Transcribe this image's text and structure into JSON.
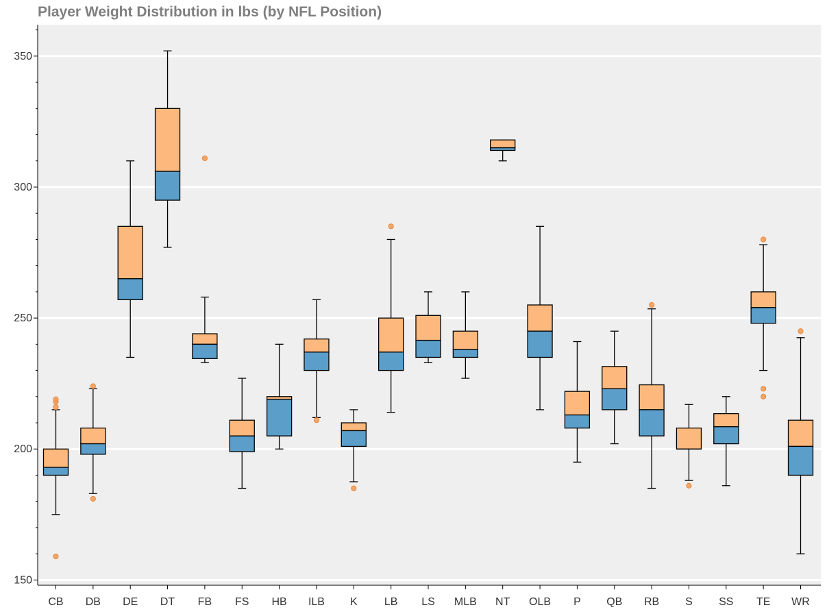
{
  "chart_data": {
    "type": "box",
    "title": "Player Weight Distribution in lbs (by NFL Position)",
    "xlabel": "",
    "ylabel": "",
    "ylim": [
      148,
      362
    ],
    "yticks": [
      150,
      200,
      250,
      300,
      350
    ],
    "grid": {
      "horizontal": true,
      "vertical": false
    },
    "colors": {
      "upper_box": "#fdb97d",
      "lower_box": "#5b9ec9",
      "outlier": "#f29a52",
      "background": "#efefef",
      "grid": "#ffffff",
      "whisker": "#000000"
    },
    "categories": [
      "CB",
      "DB",
      "DE",
      "DT",
      "FB",
      "FS",
      "HB",
      "ILB",
      "K",
      "LB",
      "LS",
      "MLB",
      "NT",
      "OLB",
      "P",
      "QB",
      "RB",
      "S",
      "SS",
      "TE",
      "WR"
    ],
    "boxes": [
      {
        "label": "CB",
        "lower_whisker": 175,
        "q1": 190,
        "median": 193,
        "q3": 200,
        "upper_whisker": 215,
        "outliers": [
          159,
          216,
          218,
          219
        ]
      },
      {
        "label": "DB",
        "lower_whisker": 183,
        "q1": 198,
        "median": 202,
        "q3": 208,
        "upper_whisker": 223,
        "outliers": [
          181,
          224
        ]
      },
      {
        "label": "DE",
        "lower_whisker": 235,
        "q1": 257,
        "median": 265,
        "q3": 285,
        "upper_whisker": 310,
        "outliers": []
      },
      {
        "label": "DT",
        "lower_whisker": 277,
        "q1": 295,
        "median": 306,
        "q3": 330,
        "upper_whisker": 352,
        "outliers": []
      },
      {
        "label": "FB",
        "lower_whisker": 233,
        "q1": 234.5,
        "median": 240,
        "q3": 244,
        "upper_whisker": 258,
        "outliers": [
          311
        ]
      },
      {
        "label": "FS",
        "lower_whisker": 185,
        "q1": 199,
        "median": 205,
        "q3": 211,
        "upper_whisker": 227,
        "outliers": []
      },
      {
        "label": "HB",
        "lower_whisker": 200,
        "q1": 205,
        "median": 219,
        "q3": 220,
        "upper_whisker": 240,
        "outliers": []
      },
      {
        "label": "ILB",
        "lower_whisker": 212,
        "q1": 230,
        "median": 237,
        "q3": 242,
        "upper_whisker": 257,
        "outliers": [
          211
        ]
      },
      {
        "label": "K",
        "lower_whisker": 187.5,
        "q1": 201,
        "median": 207,
        "q3": 210,
        "upper_whisker": 215,
        "outliers": [
          185
        ]
      },
      {
        "label": "LB",
        "lower_whisker": 214,
        "q1": 230,
        "median": 237,
        "q3": 250,
        "upper_whisker": 280,
        "outliers": [
          285
        ]
      },
      {
        "label": "LS",
        "lower_whisker": 233,
        "q1": 235,
        "median": 241.5,
        "q3": 251,
        "upper_whisker": 260,
        "outliers": []
      },
      {
        "label": "MLB",
        "lower_whisker": 227,
        "q1": 235,
        "median": 238,
        "q3": 245,
        "upper_whisker": 260,
        "outliers": []
      },
      {
        "label": "NT",
        "lower_whisker": 310,
        "q1": 314,
        "median": 315,
        "q3": 318,
        "upper_whisker": 318,
        "outliers": []
      },
      {
        "label": "OLB",
        "lower_whisker": 215,
        "q1": 235,
        "median": 245,
        "q3": 255,
        "upper_whisker": 285,
        "outliers": []
      },
      {
        "label": "P",
        "lower_whisker": 195,
        "q1": 208,
        "median": 213,
        "q3": 222,
        "upper_whisker": 241,
        "outliers": []
      },
      {
        "label": "QB",
        "lower_whisker": 202,
        "q1": 215,
        "median": 223,
        "q3": 231.5,
        "upper_whisker": 245,
        "outliers": []
      },
      {
        "label": "RB",
        "lower_whisker": 185,
        "q1": 205,
        "median": 215,
        "q3": 224.5,
        "upper_whisker": 253.5,
        "outliers": [
          255
        ]
      },
      {
        "label": "S",
        "lower_whisker": 188,
        "q1": 200,
        "median": 200,
        "q3": 208,
        "upper_whisker": 217,
        "outliers": [
          186
        ]
      },
      {
        "label": "SS",
        "lower_whisker": 186,
        "q1": 202,
        "median": 208.5,
        "q3": 213.5,
        "upper_whisker": 220,
        "outliers": []
      },
      {
        "label": "TE",
        "lower_whisker": 230,
        "q1": 248,
        "median": 254,
        "q3": 260,
        "upper_whisker": 278,
        "outliers": [
          220,
          223,
          280
        ]
      },
      {
        "label": "WR",
        "lower_whisker": 160,
        "q1": 190,
        "median": 201,
        "q3": 211,
        "upper_whisker": 242.5,
        "outliers": [
          245
        ]
      }
    ]
  }
}
